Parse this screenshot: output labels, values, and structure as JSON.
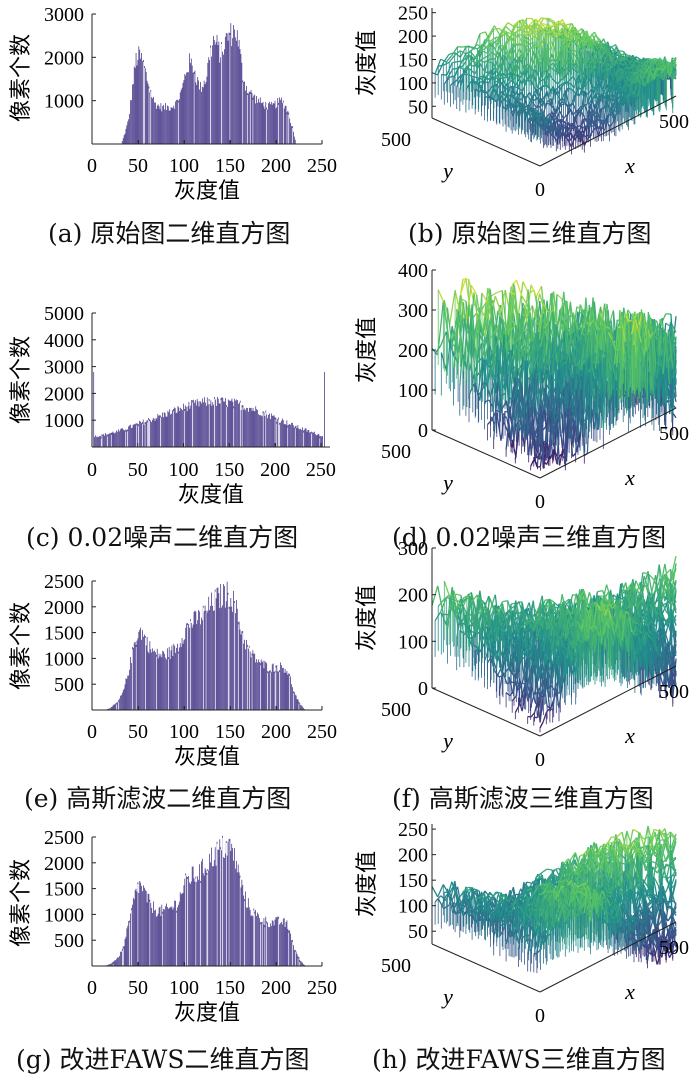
{
  "panels": [
    {
      "id": "a",
      "caption": "(a)  原始图二维直方图",
      "chart_data": {
        "type": "bar",
        "xlabel": "灰度值",
        "ylabel": "像素个数",
        "xlim": [
          0,
          250
        ],
        "ylim": [
          0,
          3000
        ],
        "xticks": [
          0,
          50,
          100,
          150,
          200,
          250
        ],
        "yticks": [
          1000,
          2000,
          3000
        ],
        "color": "#3b2a80",
        "anchors": [
          [
            32,
            0
          ],
          [
            36,
            260
          ],
          [
            40,
            560
          ],
          [
            44,
            1300
          ],
          [
            48,
            1950
          ],
          [
            52,
            2050
          ],
          [
            56,
            1850
          ],
          [
            60,
            1500
          ],
          [
            64,
            1200
          ],
          [
            68,
            950
          ],
          [
            72,
            880
          ],
          [
            78,
            840
          ],
          [
            86,
            860
          ],
          [
            92,
            950
          ],
          [
            98,
            1250
          ],
          [
            102,
            1650
          ],
          [
            106,
            1880
          ],
          [
            110,
            1800
          ],
          [
            114,
            1500
          ],
          [
            118,
            1300
          ],
          [
            124,
            1500
          ],
          [
            128,
            2050
          ],
          [
            132,
            2380
          ],
          [
            136,
            2280
          ],
          [
            140,
            2050
          ],
          [
            144,
            2300
          ],
          [
            148,
            2500
          ],
          [
            152,
            2550
          ],
          [
            156,
            2650
          ],
          [
            160,
            2250
          ],
          [
            164,
            1600
          ],
          [
            168,
            1300
          ],
          [
            172,
            1180
          ],
          [
            178,
            1050
          ],
          [
            184,
            950
          ],
          [
            190,
            880
          ],
          [
            196,
            870
          ],
          [
            202,
            950
          ],
          [
            206,
            1000
          ],
          [
            210,
            900
          ],
          [
            214,
            700
          ],
          [
            218,
            380
          ],
          [
            222,
            0
          ]
        ]
      }
    },
    {
      "id": "b",
      "caption": "(b)  原始图三维直方图",
      "chart_data": {
        "type": "surface",
        "xlabel": "x",
        "ylabel": "y",
        "zlabel": "灰度值",
        "x_ticks": [
          500
        ],
        "y_ticks": [
          500
        ],
        "origin_tick": "0",
        "zlim": [
          25,
          260
        ],
        "zticks": [
          50,
          100,
          150,
          200,
          250
        ]
      }
    },
    {
      "id": "c",
      "caption": "(c)  0.02噪声二维直方图",
      "chart_data": {
        "type": "bar",
        "xlabel": "灰度值",
        "ylabel": "像素个数",
        "xlim": [
          0,
          260
        ],
        "ylim": [
          0,
          5000
        ],
        "xticks": [
          0,
          50,
          100,
          150,
          200,
          250
        ],
        "yticks": [
          1000,
          2000,
          3000,
          4000,
          5000
        ],
        "color": "#3b2a80",
        "anchors": [
          [
            1,
            0
          ],
          [
            2,
            2800
          ],
          [
            3,
            400
          ],
          [
            10,
            430
          ],
          [
            30,
            600
          ],
          [
            50,
            850
          ],
          [
            70,
            1100
          ],
          [
            90,
            1350
          ],
          [
            110,
            1580
          ],
          [
            125,
            1680
          ],
          [
            130,
            1700
          ],
          [
            145,
            1680
          ],
          [
            160,
            1600
          ],
          [
            180,
            1380
          ],
          [
            200,
            1100
          ],
          [
            220,
            800
          ],
          [
            240,
            550
          ],
          [
            252,
            420
          ],
          [
            253,
            0
          ],
          [
            254,
            2800
          ]
        ]
      }
    },
    {
      "id": "d",
      "caption": "(d)  0.02噪声三维直方图",
      "chart_data": {
        "type": "surface",
        "xlabel": "x",
        "ylabel": "y",
        "zlabel": "灰度值",
        "x_ticks": [
          500
        ],
        "y_ticks": [
          500
        ],
        "origin_tick": "0",
        "zlim": [
          0,
          400
        ],
        "zticks": [
          0,
          100,
          200,
          300,
          400
        ]
      }
    },
    {
      "id": "e",
      "caption": "(e)  高斯滤波二维直方图",
      "chart_data": {
        "type": "bar",
        "xlabel": "灰度值",
        "ylabel": "像素个数",
        "xlim": [
          0,
          250
        ],
        "ylim": [
          0,
          2500
        ],
        "xticks": [
          0,
          50,
          100,
          150,
          200,
          250
        ],
        "yticks": [
          500,
          1000,
          1500,
          2000,
          2500
        ],
        "color": "#3b2a80",
        "anchors": [
          [
            14,
            0
          ],
          [
            20,
            40
          ],
          [
            28,
            150
          ],
          [
            34,
            350
          ],
          [
            40,
            750
          ],
          [
            46,
            1280
          ],
          [
            50,
            1500
          ],
          [
            54,
            1520
          ],
          [
            58,
            1380
          ],
          [
            64,
            1180
          ],
          [
            70,
            1080
          ],
          [
            78,
            1060
          ],
          [
            86,
            1120
          ],
          [
            94,
            1250
          ],
          [
            100,
            1500
          ],
          [
            106,
            1680
          ],
          [
            112,
            1730
          ],
          [
            118,
            1800
          ],
          [
            124,
            1900
          ],
          [
            130,
            2050
          ],
          [
            136,
            2150
          ],
          [
            142,
            2220
          ],
          [
            148,
            2250
          ],
          [
            152,
            2200
          ],
          [
            156,
            2000
          ],
          [
            160,
            1700
          ],
          [
            166,
            1350
          ],
          [
            172,
            1100
          ],
          [
            178,
            1000
          ],
          [
            184,
            900
          ],
          [
            190,
            850
          ],
          [
            196,
            820
          ],
          [
            202,
            840
          ],
          [
            208,
            830
          ],
          [
            212,
            780
          ],
          [
            216,
            600
          ],
          [
            220,
            330
          ],
          [
            226,
            120
          ],
          [
            232,
            0
          ]
        ]
      }
    },
    {
      "id": "f",
      "caption": "(f)  高斯滤波三维直方图",
      "chart_data": {
        "type": "surface",
        "xlabel": "x",
        "ylabel": "y",
        "zlabel": "灰度值",
        "x_ticks": [
          500
        ],
        "y_ticks": [
          500
        ],
        "origin_tick": "0",
        "zlim": [
          0,
          300
        ],
        "zticks": [
          0,
          100,
          200,
          300
        ]
      }
    },
    {
      "id": "g",
      "caption": "(g)  改进FAWS二维直方图",
      "chart_data": {
        "type": "bar",
        "xlabel": "灰度值",
        "ylabel": "像素个数",
        "xlim": [
          0,
          250
        ],
        "ylim": [
          0,
          2500
        ],
        "xticks": [
          0,
          50,
          100,
          150,
          200,
          250
        ],
        "yticks": [
          500,
          1000,
          1500,
          2000,
          2500
        ],
        "color": "#3b2a80",
        "anchors": [
          [
            14,
            0
          ],
          [
            20,
            40
          ],
          [
            28,
            150
          ],
          [
            34,
            350
          ],
          [
            40,
            800
          ],
          [
            46,
            1300
          ],
          [
            50,
            1550
          ],
          [
            54,
            1550
          ],
          [
            58,
            1380
          ],
          [
            64,
            1180
          ],
          [
            70,
            1080
          ],
          [
            78,
            1060
          ],
          [
            86,
            1120
          ],
          [
            94,
            1250
          ],
          [
            100,
            1550
          ],
          [
            106,
            1720
          ],
          [
            112,
            1750
          ],
          [
            118,
            1820
          ],
          [
            124,
            1950
          ],
          [
            130,
            2100
          ],
          [
            136,
            2200
          ],
          [
            142,
            2280
          ],
          [
            148,
            2330
          ],
          [
            152,
            2250
          ],
          [
            156,
            2050
          ],
          [
            160,
            1750
          ],
          [
            166,
            1350
          ],
          [
            172,
            1100
          ],
          [
            178,
            1000
          ],
          [
            184,
            900
          ],
          [
            190,
            860
          ],
          [
            196,
            840
          ],
          [
            202,
            860
          ],
          [
            208,
            850
          ],
          [
            212,
            800
          ],
          [
            216,
            620
          ],
          [
            220,
            340
          ],
          [
            226,
            120
          ],
          [
            232,
            0
          ]
        ]
      }
    },
    {
      "id": "h",
      "caption": "(h)  改进FAWS三维直方图",
      "chart_data": {
        "type": "surface",
        "xlabel": "x",
        "ylabel": "y",
        "zlabel": "灰度值",
        "x_ticks": [
          500
        ],
        "y_ticks": [
          500
        ],
        "origin_tick": "0",
        "zlim": [
          25,
          260
        ],
        "zticks": [
          50,
          100,
          150,
          200,
          250
        ]
      }
    }
  ]
}
